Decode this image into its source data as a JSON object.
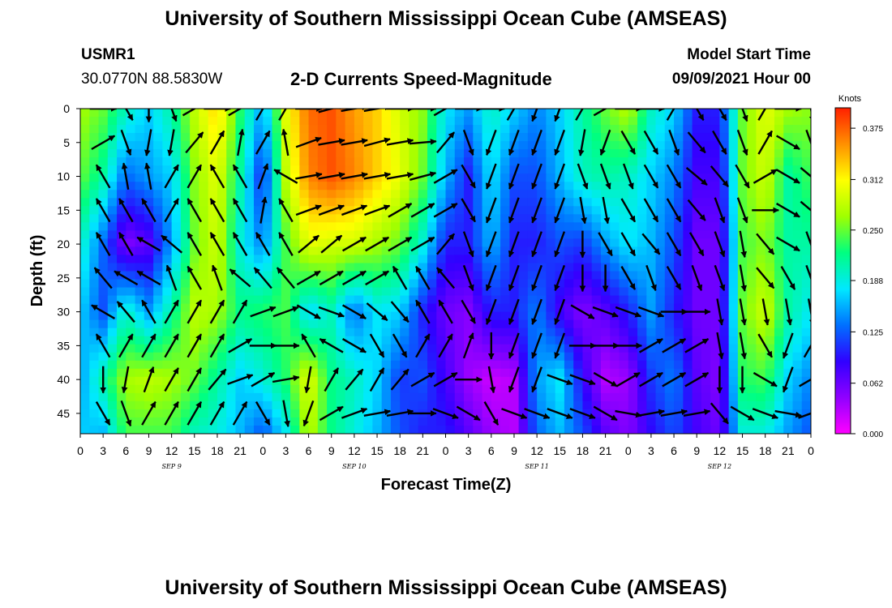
{
  "page": {
    "title_top": "University of Southern Mississippi Ocean Cube (AMSEAS)",
    "title_bottom": "University of Southern Mississippi Ocean Cube (AMSEAS)",
    "station_id": "USMR1",
    "coordinates": "30.0770N  88.5830W",
    "plot_title": "2-D Currents Speed-Magnitude",
    "model_start_label": "Model Start Time",
    "model_start_value": "09/09/2021 Hour 00"
  },
  "chart_data": {
    "type": "heatmap",
    "title": "2-D Currents Speed-Magnitude",
    "xlabel": "Forecast Time(Z)",
    "ylabel": "Depth (ft)",
    "x_ticks": [
      "0",
      "3",
      "6",
      "9",
      "12",
      "15",
      "18",
      "21",
      "0",
      "3",
      "6",
      "9",
      "12",
      "15",
      "18",
      "21",
      "0",
      "3",
      "6",
      "9",
      "12",
      "15",
      "18",
      "21",
      "0",
      "3",
      "6",
      "9",
      "12",
      "15",
      "18",
      "21",
      "0"
    ],
    "x_ticks_hours": [
      0,
      3,
      6,
      9,
      12,
      15,
      18,
      21,
      24,
      27,
      30,
      33,
      36,
      39,
      42,
      45,
      48,
      51,
      54,
      57,
      60,
      63,
      66,
      69,
      72,
      75,
      78,
      81,
      84,
      87,
      90,
      93,
      96
    ],
    "date_labels": [
      {
        "hour": 12,
        "text": "SEP 9"
      },
      {
        "hour": 36,
        "text": "SEP 10"
      },
      {
        "hour": 60,
        "text": "SEP 11"
      },
      {
        "hour": 84,
        "text": "SEP 12"
      }
    ],
    "y_ticks": [
      0,
      5,
      10,
      15,
      20,
      25,
      30,
      35,
      40,
      45
    ],
    "xlim": [
      0,
      96
    ],
    "ylim": [
      0,
      48
    ],
    "y_inverted": true,
    "colorbar": {
      "label": "Knots",
      "ticks": [
        "0.375",
        "0.312",
        "0.250",
        "0.188",
        "0.125",
        "0.062",
        "0.000"
      ],
      "tick_values": [
        0.375,
        0.312,
        0.25,
        0.188,
        0.125,
        0.062,
        0.0
      ],
      "range": [
        0,
        0.4
      ],
      "colors": [
        "#ff00ff",
        "#9000ff",
        "#3000ff",
        "#0070ff",
        "#00e8ff",
        "#00ff80",
        "#a0ff00",
        "#ffff00",
        "#ff9000",
        "#ff2000"
      ]
    },
    "speed_field_knots": {
      "hours": [
        0,
        3,
        6,
        9,
        12,
        15,
        18,
        21,
        24,
        27,
        30,
        33,
        36,
        39,
        42,
        45,
        48,
        51,
        54,
        57,
        60,
        63,
        66,
        69,
        72,
        75,
        78,
        81,
        84,
        87,
        90,
        93,
        96
      ],
      "depths_ft": [
        0,
        10,
        20,
        30,
        40,
        48
      ],
      "rows": [
        [
          0.27,
          0.25,
          0.2,
          0.17,
          0.21,
          0.28,
          0.33,
          0.23,
          0.15,
          0.3,
          0.37,
          0.38,
          0.35,
          0.33,
          0.29,
          0.26,
          0.18,
          0.15,
          0.2,
          0.17,
          0.14,
          0.17,
          0.21,
          0.25,
          0.28,
          0.2,
          0.17,
          0.1,
          0.1,
          0.25,
          0.3,
          0.27,
          0.26
        ],
        [
          0.25,
          0.21,
          0.13,
          0.15,
          0.17,
          0.26,
          0.3,
          0.21,
          0.1,
          0.28,
          0.36,
          0.38,
          0.36,
          0.33,
          0.3,
          0.25,
          0.16,
          0.1,
          0.18,
          0.12,
          0.12,
          0.16,
          0.2,
          0.21,
          0.2,
          0.17,
          0.14,
          0.08,
          0.08,
          0.25,
          0.29,
          0.21,
          0.24
        ],
        [
          0.2,
          0.13,
          0.05,
          0.07,
          0.15,
          0.25,
          0.29,
          0.19,
          0.14,
          0.24,
          0.3,
          0.29,
          0.29,
          0.27,
          0.25,
          0.19,
          0.1,
          0.1,
          0.16,
          0.1,
          0.1,
          0.12,
          0.11,
          0.15,
          0.18,
          0.16,
          0.12,
          0.06,
          0.06,
          0.24,
          0.26,
          0.21,
          0.21
        ],
        [
          0.17,
          0.12,
          0.2,
          0.15,
          0.21,
          0.28,
          0.27,
          0.22,
          0.23,
          0.24,
          0.17,
          0.2,
          0.13,
          0.18,
          0.17,
          0.1,
          0.06,
          0.05,
          0.1,
          0.1,
          0.14,
          0.08,
          0.05,
          0.07,
          0.1,
          0.15,
          0.1,
          0.06,
          0.06,
          0.25,
          0.29,
          0.21,
          0.18
        ],
        [
          0.15,
          0.21,
          0.27,
          0.28,
          0.27,
          0.25,
          0.21,
          0.17,
          0.19,
          0.23,
          0.3,
          0.22,
          0.2,
          0.17,
          0.11,
          0.12,
          0.08,
          0.04,
          0.02,
          0.03,
          0.15,
          0.18,
          0.09,
          0.03,
          0.04,
          0.11,
          0.14,
          0.07,
          0.05,
          0.23,
          0.24,
          0.17,
          0.14
        ],
        [
          0.17,
          0.16,
          0.24,
          0.24,
          0.24,
          0.2,
          0.19,
          0.16,
          0.12,
          0.18,
          0.28,
          0.22,
          0.19,
          0.16,
          0.12,
          0.1,
          0.1,
          0.07,
          0.04,
          0.03,
          0.13,
          0.16,
          0.12,
          0.07,
          0.05,
          0.09,
          0.12,
          0.08,
          0.06,
          0.19,
          0.19,
          0.15,
          0.12
        ]
      ]
    },
    "vectors": {
      "hours": [
        3,
        6,
        9,
        12,
        15,
        18,
        21,
        24,
        27,
        30,
        33,
        36,
        39,
        42,
        45,
        48,
        51,
        54,
        57,
        60,
        63,
        66,
        69,
        72,
        75,
        78,
        81,
        84,
        87,
        90,
        93,
        96
      ],
      "depths_ft": [
        0,
        5,
        10,
        15,
        20,
        25,
        30,
        35,
        40,
        45
      ],
      "direction_deg": [
        [
          90,
          150,
          180,
          160,
          60,
          90,
          60,
          30,
          30,
          90,
          75,
          80,
          80,
          90,
          90,
          60,
          90,
          90,
          30,
          200,
          200,
          30,
          60,
          90,
          90,
          30,
          150,
          150,
          160,
          30,
          90,
          170
        ],
        [
          60,
          160,
          190,
          190,
          40,
          30,
          10,
          30,
          350,
          70,
          80,
          80,
          75,
          80,
          85,
          40,
          160,
          200,
          200,
          200,
          200,
          190,
          200,
          150,
          150,
          160,
          140,
          150,
          160,
          30,
          120,
          160
        ],
        [
          330,
          350,
          350,
          30,
          30,
          330,
          330,
          20,
          300,
          80,
          80,
          80,
          80,
          80,
          75,
          60,
          150,
          200,
          200,
          200,
          200,
          160,
          160,
          160,
          150,
          150,
          130,
          140,
          150,
          60,
          120,
          130
        ],
        [
          330,
          330,
          330,
          30,
          330,
          330,
          330,
          10,
          330,
          70,
          70,
          70,
          70,
          60,
          60,
          60,
          150,
          200,
          200,
          200,
          200,
          170,
          170,
          150,
          150,
          150,
          140,
          160,
          160,
          90,
          120,
          130
        ],
        [
          330,
          330,
          300,
          310,
          330,
          330,
          330,
          330,
          330,
          50,
          50,
          60,
          60,
          60,
          60,
          40,
          160,
          200,
          200,
          200,
          200,
          180,
          150,
          150,
          140,
          150,
          150,
          160,
          170,
          140,
          120,
          160
        ],
        [
          320,
          300,
          300,
          340,
          330,
          340,
          310,
          320,
          320,
          60,
          60,
          60,
          60,
          330,
          330,
          320,
          160,
          200,
          200,
          200,
          200,
          180,
          180,
          150,
          160,
          150,
          160,
          160,
          170,
          140,
          150,
          160
        ],
        [
          300,
          320,
          330,
          30,
          30,
          30,
          30,
          70,
          70,
          120,
          110,
          120,
          130,
          140,
          330,
          330,
          150,
          200,
          200,
          200,
          200,
          120,
          110,
          110,
          110,
          90,
          90,
          170,
          170,
          170,
          170,
          170
        ],
        [
          330,
          30,
          30,
          30,
          30,
          30,
          60,
          90,
          90,
          330,
          300,
          120,
          150,
          150,
          30,
          30,
          20,
          180,
          200,
          200,
          200,
          90,
          90,
          90,
          60,
          60,
          60,
          170,
          170,
          150,
          200,
          30
        ],
        [
          180,
          190,
          20,
          30,
          30,
          40,
          70,
          60,
          80,
          190,
          30,
          40,
          30,
          40,
          60,
          60,
          90,
          170,
          200,
          200,
          110,
          110,
          120,
          60,
          60,
          60,
          60,
          180,
          180,
          120,
          200,
          60
        ],
        [
          150,
          160,
          30,
          30,
          30,
          30,
          30,
          150,
          170,
          200,
          60,
          70,
          80,
          80,
          90,
          110,
          120,
          150,
          110,
          110,
          110,
          110,
          120,
          100,
          80,
          80,
          80,
          140,
          120,
          110,
          100,
          70
        ]
      ]
    }
  }
}
